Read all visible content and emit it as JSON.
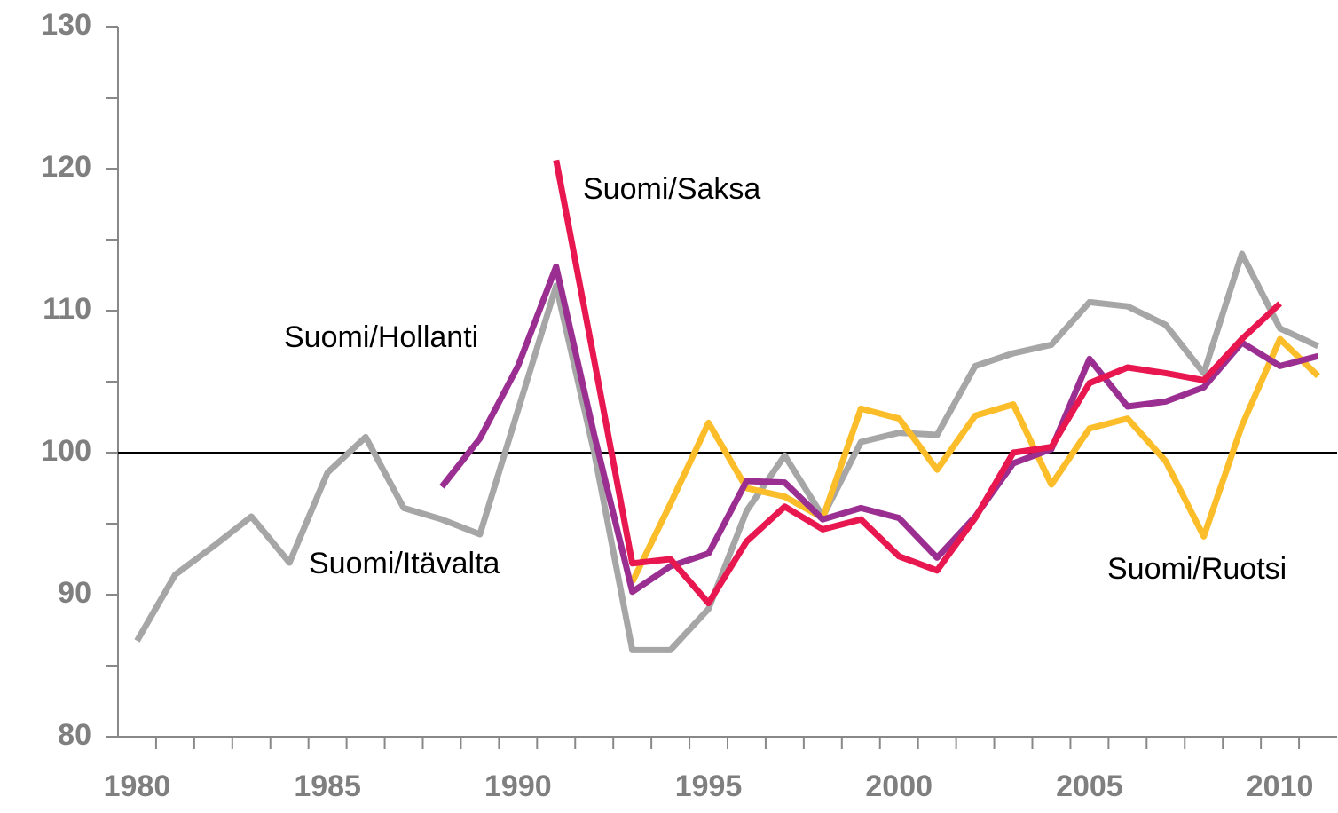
{
  "chart_data": {
    "type": "line",
    "categories": [
      "1980",
      null,
      null,
      null,
      null,
      "1985",
      null,
      null,
      null,
      null,
      "1990",
      null,
      null,
      null,
      null,
      "1995",
      null,
      null,
      null,
      null,
      "2000",
      null,
      null,
      null,
      null,
      "2005",
      null,
      null,
      null,
      null,
      "2010",
      null
    ],
    "series": [
      {
        "name": "Suomi/Itävalta",
        "color": "#a6a6a6",
        "values": [
          86.75,
          91.4,
          93.4,
          95.5,
          92.25,
          98.6,
          101.1,
          96.1,
          95.3,
          94.25,
          103,
          111.75,
          100,
          86.1,
          86.1,
          89,
          95.9,
          99.8,
          95.5,
          100.75,
          101.4,
          101.25,
          106.1,
          107,
          107.6,
          110.6,
          110.3,
          109,
          105.6,
          114,
          108.75,
          107.5
        ]
      },
      {
        "name": "Suomi/Ruotsi",
        "color": "#fbbd29",
        "values": [
          null,
          null,
          null,
          null,
          null,
          null,
          null,
          null,
          null,
          null,
          null,
          null,
          null,
          90.9,
          96.4,
          102.1,
          97.5,
          96.9,
          95.4,
          103.1,
          102.4,
          98.8,
          102.6,
          103.4,
          97.75,
          101.7,
          102.4,
          99.4,
          94.1,
          101.9,
          108,
          105.4
        ]
      },
      {
        "name": "Suomi/Hollanti",
        "color": "#9b2f91",
        "values": [
          null,
          null,
          null,
          null,
          null,
          null,
          null,
          null,
          97.6,
          101,
          106.1,
          113.1,
          101.25,
          90.2,
          92,
          92.9,
          98,
          97.9,
          95.3,
          96.1,
          95.4,
          92.6,
          95.5,
          99.25,
          100.25,
          106.6,
          103.25,
          103.6,
          104.6,
          107.75,
          106.1,
          106.8
        ]
      },
      {
        "name": "Suomi/Saksa",
        "color": "#e8174f",
        "values": [
          null,
          null,
          null,
          null,
          null,
          null,
          null,
          null,
          null,
          null,
          null,
          120.6,
          106.5,
          92.2,
          92.5,
          89.4,
          93.75,
          96.2,
          94.6,
          95.3,
          92.7,
          91.7,
          95.4,
          100,
          100.4,
          104.9,
          106,
          105.6,
          105.1,
          108,
          110.5,
          null
        ]
      }
    ],
    "ylim": [
      80,
      130
    ],
    "yticks": [
      80,
      90,
      100,
      110,
      120,
      130
    ],
    "yminor_ticks": [
      85,
      95,
      105,
      115,
      125
    ],
    "reference_line": 100,
    "grid": false
  }
}
